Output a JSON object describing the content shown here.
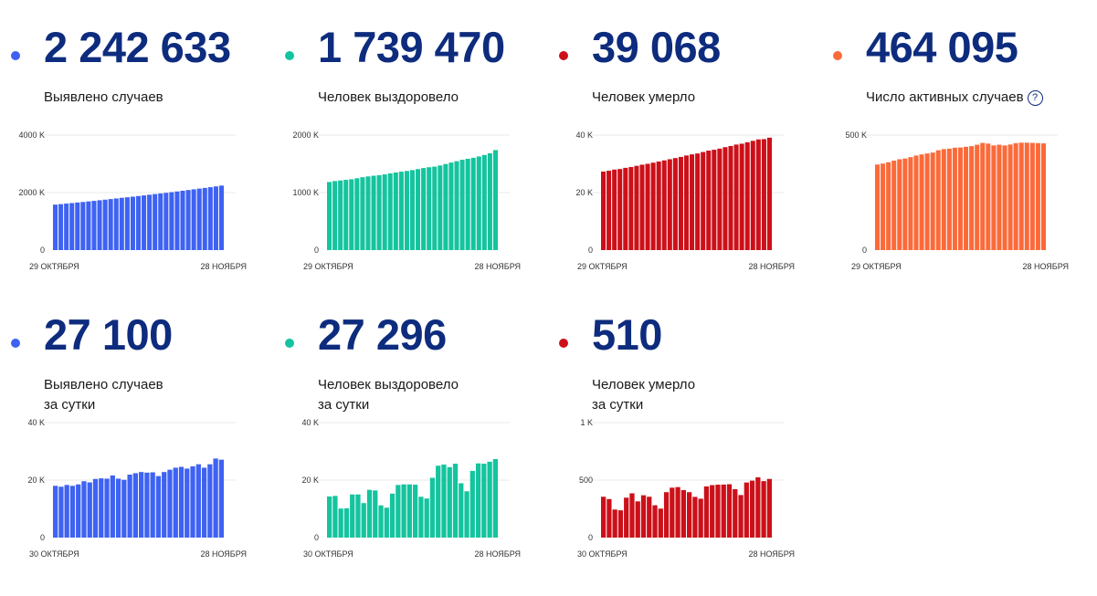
{
  "cards": [
    {
      "total": "2 242 633",
      "label1": "Выявлено случаев",
      "label2": "",
      "color": "#3e62f2"
    },
    {
      "total": "1 739 470",
      "label1": "Человек выздоровело",
      "label2": "",
      "color": "#14c49e"
    },
    {
      "total": "39 068",
      "label1": "Человек умерло",
      "label2": "",
      "color": "#cc1019"
    },
    {
      "total": "464 095",
      "label1": "Число активных случаев",
      "label2": "",
      "color": "#fb6a3a",
      "help_icon": "?"
    },
    {
      "total": "27 100",
      "label1": "Выявлено случаев",
      "label2": "за сутки",
      "color": "#3e62f2"
    },
    {
      "total": "27 296",
      "label1": "Человек выздоровело",
      "label2": "за сутки",
      "color": "#14c49e"
    },
    {
      "total": "510",
      "label1": "Человек умерло",
      "label2": "за сутки",
      "color": "#cc1019"
    }
  ],
  "chart_data": [
    {
      "type": "bar",
      "title": "Выявлено случаев",
      "x_start": "29 ОКТЯБРЯ",
      "x_end": "28 НОЯБРЯ",
      "y_ticks": [
        0,
        2000,
        4000
      ],
      "y_tick_labels": [
        "0",
        "2000 K",
        "4000 K"
      ],
      "ylim": [
        0,
        4000
      ],
      "units": "thousands",
      "color": "#3e62f2",
      "values": [
        1581,
        1599,
        1617,
        1636,
        1655,
        1673,
        1693,
        1712,
        1733,
        1753,
        1774,
        1796,
        1818,
        1837,
        1858,
        1880,
        1902,
        1925,
        1948,
        1971,
        1991,
        2015,
        2039,
        2064,
        2089,
        2114,
        2139,
        2163,
        2188,
        2215,
        2243
      ]
    },
    {
      "type": "bar",
      "title": "Человек выздоровело",
      "x_start": "29 ОКТЯБРЯ",
      "x_end": "28 НОЯБРЯ",
      "y_ticks": [
        0,
        1000,
        2000
      ],
      "y_tick_labels": [
        "0",
        "1000 K",
        "2000 K"
      ],
      "ylim": [
        0,
        2000
      ],
      "units": "thousands",
      "color": "#14c49e",
      "values": [
        1184,
        1200,
        1211,
        1221,
        1232,
        1249,
        1267,
        1281,
        1293,
        1302,
        1316,
        1334,
        1349,
        1364,
        1376,
        1391,
        1409,
        1427,
        1441,
        1451,
        1471,
        1497,
        1522,
        1546,
        1570,
        1588,
        1605,
        1628,
        1654,
        1684,
        1739
      ]
    },
    {
      "type": "bar",
      "title": "Человек умерло",
      "x_start": "29 ОКТЯБРЯ",
      "x_end": "28 НОЯБРЯ",
      "y_ticks": [
        0,
        20,
        40
      ],
      "y_tick_labels": [
        "0",
        "20 K",
        "40 K"
      ],
      "ylim": [
        0,
        40
      ],
      "units": "thousands",
      "color": "#cc1019",
      "values": [
        27.3,
        27.6,
        28.0,
        28.2,
        28.6,
        28.9,
        29.3,
        29.7,
        30.0,
        30.4,
        30.8,
        31.2,
        31.6,
        32.0,
        32.4,
        32.9,
        33.3,
        33.6,
        34.1,
        34.6,
        34.9,
        35.3,
        35.8,
        36.2,
        36.7,
        37.0,
        37.5,
        38.0,
        38.5,
        38.6,
        39.1
      ]
    },
    {
      "type": "bar",
      "title": "Число активных случаев",
      "x_start": "29 ОКТЯБРЯ",
      "x_end": "28 НОЯБРЯ",
      "y_ticks": [
        0,
        500
      ],
      "y_tick_labels": [
        "0",
        "500 K"
      ],
      "ylim": [
        0,
        500
      ],
      "units": "thousands",
      "color": "#fb6a3a",
      "values": [
        372,
        376,
        382,
        389,
        395,
        398,
        404,
        411,
        416,
        420,
        424,
        434,
        439,
        441,
        445,
        446,
        449,
        452,
        458,
        466,
        463,
        455,
        458,
        455,
        459,
        465,
        467,
        467,
        466,
        465,
        464
      ]
    },
    {
      "type": "bar",
      "title": "Выявлено случаев за сутки",
      "x_start": "30 ОКТЯБРЯ",
      "x_end": "28 НОЯБРЯ",
      "y_ticks": [
        0,
        20,
        40
      ],
      "y_tick_labels": [
        "0",
        "20 K",
        "40 K"
      ],
      "ylim": [
        0,
        40
      ],
      "units": "thousands",
      "color": "#3e62f2",
      "values": [
        18.0,
        17.7,
        18.3,
        18.0,
        18.5,
        19.6,
        19.2,
        20.4,
        20.6,
        20.5,
        21.6,
        20.5,
        20.1,
        21.9,
        22.4,
        22.8,
        22.6,
        22.7,
        21.4,
        22.8,
        23.6,
        24.3,
        24.6,
        24.0,
        24.8,
        25.5,
        24.3,
        25.5,
        27.5,
        27.1
      ]
    },
    {
      "type": "bar",
      "title": "Человек выздоровело за сутки",
      "x_start": "30 ОКТЯБРЯ",
      "x_end": "28 НОЯБРЯ",
      "y_ticks": [
        0,
        20,
        40
      ],
      "y_tick_labels": [
        "0",
        "20 K",
        "40 K"
      ],
      "ylim": [
        0,
        40
      ],
      "units": "thousands",
      "color": "#14c49e",
      "values": [
        14.3,
        14.5,
        10.1,
        10.2,
        15.0,
        15.0,
        12.0,
        16.6,
        16.4,
        11.2,
        10.4,
        15.3,
        18.3,
        18.5,
        18.5,
        18.4,
        14.2,
        13.6,
        20.8,
        25.0,
        25.4,
        24.5,
        25.7,
        18.9,
        16.1,
        23.2,
        25.8,
        25.7,
        26.4,
        27.3
      ]
    },
    {
      "type": "bar",
      "title": "Человек умерло за сутки",
      "x_start": "30 ОКТЯБРЯ",
      "x_end": "28 НОЯБРЯ",
      "y_ticks": [
        0,
        500,
        1000
      ],
      "y_tick_labels": [
        "0",
        "500",
        "1 K"
      ],
      "ylim": [
        0,
        1000
      ],
      "units": "deaths",
      "color": "#cc1019",
      "values": [
        355,
        335,
        244,
        237,
        347,
        385,
        315,
        368,
        355,
        281,
        252,
        395,
        434,
        439,
        413,
        395,
        354,
        338,
        445,
        456,
        460,
        461,
        464,
        421,
        370,
        479,
        495,
        524,
        491,
        510
      ]
    }
  ]
}
